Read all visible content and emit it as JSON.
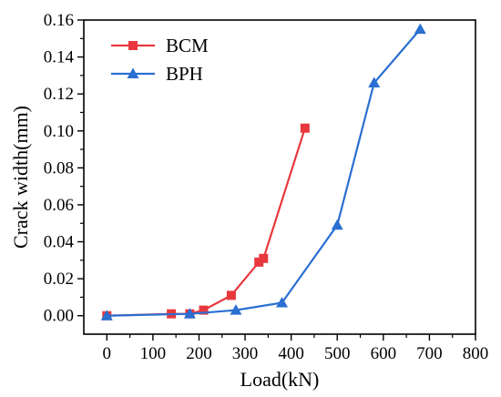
{
  "chart_data": {
    "type": "line",
    "xlabel": "Load(kN)",
    "ylabel": "Crack width(mm)",
    "xlim": [
      -50,
      800
    ],
    "ylim": [
      -0.01,
      0.16
    ],
    "x_ticks": [
      0,
      100,
      200,
      300,
      400,
      500,
      600,
      700,
      800
    ],
    "x_tick_labels": [
      "0",
      "100",
      "200",
      "300",
      "400",
      "500",
      "600",
      "700",
      "800"
    ],
    "y_ticks": [
      0.0,
      0.02,
      0.04,
      0.06,
      0.08,
      0.1,
      0.12,
      0.14,
      0.16
    ],
    "y_tick_labels": [
      "0.00",
      "0.02",
      "0.04",
      "0.06",
      "0.08",
      "0.10",
      "0.12",
      "0.14",
      "0.16"
    ],
    "grid": false,
    "legend_position": "top-left",
    "series": [
      {
        "name": "BCM",
        "color": "#e8383d",
        "marker": "square",
        "points": [
          [
            0,
            0.0
          ],
          [
            140,
            0.001
          ],
          [
            180,
            0.001
          ],
          [
            210,
            0.003
          ],
          [
            270,
            0.011
          ],
          [
            330,
            0.029
          ],
          [
            340,
            0.031
          ],
          [
            430,
            0.1015
          ]
        ]
      },
      {
        "name": "BPH",
        "color": "#2a6fd1",
        "marker": "triangle",
        "points": [
          [
            0,
            0.0
          ],
          [
            180,
            0.001
          ],
          [
            280,
            0.003
          ],
          [
            380,
            0.007
          ],
          [
            500,
            0.049
          ],
          [
            580,
            0.126
          ],
          [
            680,
            0.155
          ]
        ]
      }
    ]
  }
}
